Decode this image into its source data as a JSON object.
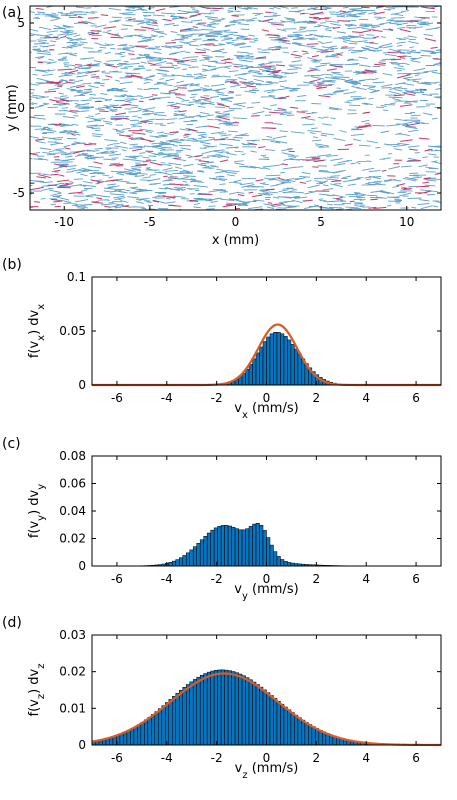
{
  "chart_data": [
    {
      "panel": "(a)",
      "type": "scatter",
      "xlabel": "x (mm)",
      "ylabel": "y (mm)",
      "xlim": [
        -12,
        12
      ],
      "ylim": [
        -6,
        6
      ],
      "xticks": [
        -10,
        -5,
        0,
        5,
        10
      ],
      "yticks": [
        -5,
        0,
        5
      ],
      "colors": {
        "primary": "#3f8fc6",
        "secondary": "#c3245a"
      }
    },
    {
      "panel": "(b)",
      "type": "bar",
      "xlabel": "v",
      "xlabel_sub": "x",
      "xlabel_unit": " (mm/s)",
      "ylabel_parts": [
        "f(v",
        "x",
        ") dv",
        "x"
      ],
      "xlim": [
        -7,
        7
      ],
      "ylim": [
        0,
        0.1
      ],
      "xticks": [
        "-6",
        "-4",
        "-2",
        "0",
        "2",
        "4",
        "6"
      ],
      "yticks": [
        "0",
        "0.05",
        "0.1"
      ],
      "hist": {
        "kind": "asymgauss",
        "mu": 0.4,
        "peak": 0.049,
        "sigmaL": 0.75,
        "sigmaR": 0.9,
        "min": -3.2,
        "max": 4.5
      },
      "fit": {
        "mu": 0.45,
        "sigma": 0.78,
        "peak": 0.056
      },
      "colors": {
        "bar": "#0a73bd",
        "fit": "#dc5a23"
      }
    },
    {
      "panel": "(c)",
      "type": "bar",
      "xlabel": "v",
      "xlabel_sub": "y",
      "xlabel_unit": " (mm/s)",
      "ylabel_parts": [
        "f(v",
        "y",
        ") dv",
        "y"
      ],
      "xlim": [
        -7,
        7
      ],
      "ylim": [
        0,
        0.08
      ],
      "xticks": [
        "-6",
        "-4",
        "-2",
        "0",
        "2",
        "4",
        "6"
      ],
      "yticks": [
        "0",
        "0.02",
        "0.04",
        "0.06",
        "0.08"
      ],
      "hist": {
        "kind": "mixture",
        "components": [
          {
            "mu": -1.7,
            "sigma": 0.95,
            "amp": 0.027
          },
          {
            "mu": -0.25,
            "sigma": 0.38,
            "amp": 0.019
          },
          {
            "mu": -0.8,
            "sigma": 1.7,
            "amp": 0.003
          }
        ],
        "min": -6.3,
        "max": 4.5
      },
      "colors": {
        "bar": "#0a73bd"
      }
    },
    {
      "panel": "(d)",
      "type": "bar",
      "xlabel": "v",
      "xlabel_sub": "z",
      "xlabel_unit": " (mm/s)",
      "ylabel_parts": [
        "f(v",
        "z",
        ") dv",
        "z"
      ],
      "xlim": [
        -7,
        7
      ],
      "ylim": [
        0,
        0.03
      ],
      "xticks": [
        "-6",
        "-4",
        "-2",
        "0",
        "2",
        "4",
        "6"
      ],
      "yticks": [
        "0",
        "0.01",
        "0.02",
        "0.03"
      ],
      "hist": {
        "kind": "asymgauss",
        "mu": -1.8,
        "peak": 0.0205,
        "sigmaL": 2.05,
        "sigmaR": 2.2,
        "min": -7,
        "max": 7
      },
      "fit": {
        "mu": -1.7,
        "sigma": 2.15,
        "peak": 0.0195
      },
      "colors": {
        "bar": "#0a73bd",
        "fit": "#dc5a23"
      }
    }
  ]
}
